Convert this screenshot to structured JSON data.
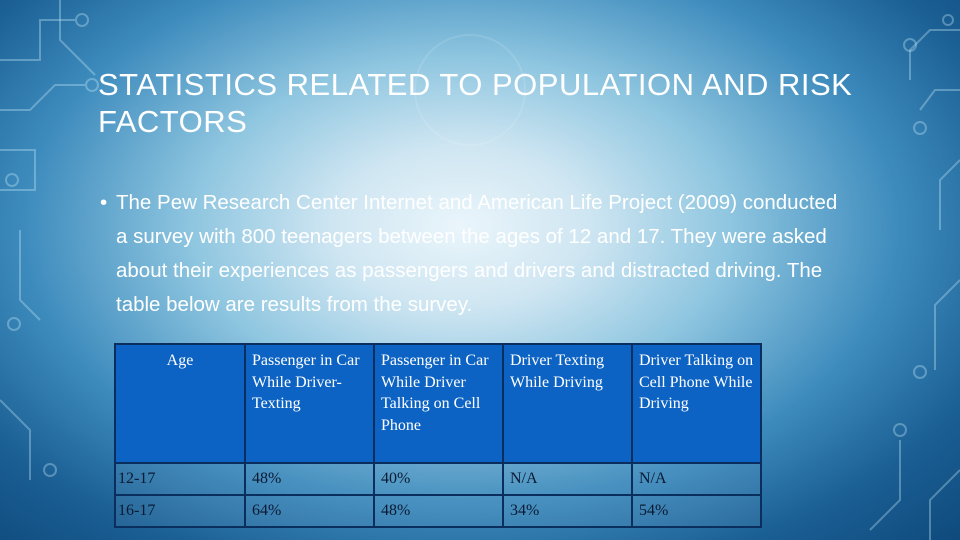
{
  "slide": {
    "title": "STATISTICS RELATED TO POPULATION AND RISK FACTORS",
    "bullet": "The Pew Research Center Internet and American Life Project (2009) conducted a survey with 800 teenagers between the ages of 12 and 17. They were asked about their experiences as passengers and drivers and distracted driving. The table below are results from the survey."
  },
  "table": {
    "headers": [
      "Age",
      "Passenger in Car While Driver-Texting",
      "Passenger in Car While Driver Talking on Cell Phone",
      "Driver Texting While Driving",
      "Driver Talking on Cell Phone While Driving"
    ],
    "rows": [
      [
        "12-17",
        "48%",
        "40%",
        "N/A",
        "N/A"
      ],
      [
        "16-17",
        "64%",
        "48%",
        "34%",
        "54%"
      ]
    ]
  },
  "colors": {
    "header_fill": "#0d63c3",
    "title_text": "#ffffff"
  }
}
